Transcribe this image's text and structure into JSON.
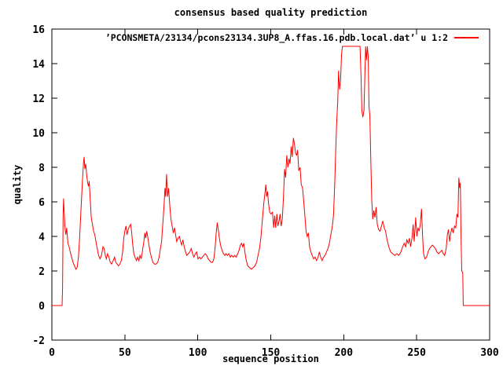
{
  "chart_data": {
    "type": "line",
    "title": "consensus based quality prediction",
    "xlabel": "sequence position",
    "ylabel": "quality",
    "legend": "’PCONSMETA/23134/pcons23134.3UP8_A.ffas.16.pdb.local.dat’ u 1:2",
    "line_color": "#ff0000",
    "border_color": "#000000",
    "background_color": "#ffffff",
    "grid": false,
    "legend_position": "top-right-inside",
    "xlim": [
      0,
      300
    ],
    "ylim": [
      -2,
      16
    ],
    "xticks": [
      0,
      50,
      100,
      150,
      200,
      250,
      300
    ],
    "yticks": [
      -2,
      0,
      2,
      4,
      6,
      8,
      10,
      12,
      14,
      16
    ],
    "points": [
      [
        0,
        0
      ],
      [
        7,
        0
      ],
      [
        7.3,
        1
      ],
      [
        7.7,
        5.2
      ],
      [
        8,
        6.2
      ],
      [
        8.4,
        5.5
      ],
      [
        9,
        4.5
      ],
      [
        9.6,
        4.1
      ],
      [
        10.2,
        4.5
      ],
      [
        11,
        3.6
      ],
      [
        11.8,
        3.4
      ],
      [
        12.6,
        3.1
      ],
      [
        13.5,
        2.8
      ],
      [
        14.5,
        2.5
      ],
      [
        15.5,
        2.3
      ],
      [
        16.5,
        2.1
      ],
      [
        17.3,
        2.2
      ],
      [
        18.2,
        2.8
      ],
      [
        19,
        3.9
      ],
      [
        20,
        5.6
      ],
      [
        21,
        7.3
      ],
      [
        21.7,
        8.3
      ],
      [
        22.1,
        8.6
      ],
      [
        22.6,
        7.9
      ],
      [
        23.2,
        8.2
      ],
      [
        23.8,
        7.6
      ],
      [
        24.5,
        7.1
      ],
      [
        25.1,
        6.9
      ],
      [
        25.6,
        7.2
      ],
      [
        26.2,
        6.3
      ],
      [
        27,
        5.1
      ],
      [
        27.8,
        4.7
      ],
      [
        28.6,
        4.3
      ],
      [
        29.4,
        4.1
      ],
      [
        30.2,
        3.7
      ],
      [
        31.1,
        3.3
      ],
      [
        32,
        2.9
      ],
      [
        33,
        2.7
      ],
      [
        34,
        2.9
      ],
      [
        35,
        3.4
      ],
      [
        35.8,
        3.3
      ],
      [
        36.6,
        2.9
      ],
      [
        37.4,
        2.7
      ],
      [
        38.2,
        3
      ],
      [
        39.1,
        2.8
      ],
      [
        40,
        2.5
      ],
      [
        41,
        2.4
      ],
      [
        42,
        2.6
      ],
      [
        43,
        2.8
      ],
      [
        43.8,
        2.5
      ],
      [
        44.7,
        2.4
      ],
      [
        45.6,
        2.3
      ],
      [
        46.6,
        2.4
      ],
      [
        47.6,
        2.6
      ],
      [
        48.5,
        3.1
      ],
      [
        49.3,
        3.9
      ],
      [
        50.2,
        4.4
      ],
      [
        50.8,
        4.6
      ],
      [
        51.5,
        4.1
      ],
      [
        52.3,
        4.4
      ],
      [
        53.2,
        4.6
      ],
      [
        54,
        4.7
      ],
      [
        54.7,
        4.2
      ],
      [
        55.4,
        3.5
      ],
      [
        56.2,
        3
      ],
      [
        57,
        2.8
      ],
      [
        58,
        2.6
      ],
      [
        58.8,
        2.8
      ],
      [
        59.6,
        2.6
      ],
      [
        60.4,
        2.9
      ],
      [
        61.2,
        2.7
      ],
      [
        62,
        3.1
      ],
      [
        63,
        3.7
      ],
      [
        63.7,
        4.2
      ],
      [
        64.3,
        3.9
      ],
      [
        65,
        4.3
      ],
      [
        65.8,
        3.9
      ],
      [
        66.5,
        3.5
      ],
      [
        67.3,
        3.1
      ],
      [
        68.2,
        2.8
      ],
      [
        69.2,
        2.5
      ],
      [
        70.3,
        2.4
      ],
      [
        71.4,
        2.4
      ],
      [
        72.5,
        2.5
      ],
      [
        73.5,
        2.8
      ],
      [
        74.4,
        3.3
      ],
      [
        75.2,
        3.7
      ],
      [
        76,
        4.7
      ],
      [
        76.8,
        5.7
      ],
      [
        77.5,
        6.8
      ],
      [
        78,
        6.3
      ],
      [
        78.6,
        7.6
      ],
      [
        79.3,
        6.3
      ],
      [
        80,
        6.8
      ],
      [
        80.8,
        5.8
      ],
      [
        81.6,
        5
      ],
      [
        82.4,
        4.6
      ],
      [
        83.2,
        4.2
      ],
      [
        84,
        4.5
      ],
      [
        84.8,
        4.1
      ],
      [
        85.6,
        3.7
      ],
      [
        86.5,
        3.9
      ],
      [
        87.4,
        4
      ],
      [
        88.2,
        3.7
      ],
      [
        89,
        3.5
      ],
      [
        89.8,
        3.8
      ],
      [
        90.7,
        3.4
      ],
      [
        91.6,
        3.1
      ],
      [
        92.5,
        2.9
      ],
      [
        93.5,
        3
      ],
      [
        94.5,
        3.1
      ],
      [
        95.5,
        3.3
      ],
      [
        96.4,
        3
      ],
      [
        97.3,
        2.8
      ],
      [
        98.3,
        3
      ],
      [
        99.2,
        3.1
      ],
      [
        100.1,
        2.7
      ],
      [
        101.1,
        2.8
      ],
      [
        102.1,
        2.7
      ],
      [
        103.1,
        2.8
      ],
      [
        104.1,
        2.9
      ],
      [
        105.1,
        3
      ],
      [
        106.1,
        2.9
      ],
      [
        107.1,
        2.7
      ],
      [
        108.1,
        2.6
      ],
      [
        109.1,
        2.5
      ],
      [
        110.1,
        2.5
      ],
      [
        111,
        2.7
      ],
      [
        111.8,
        3.3
      ],
      [
        112.6,
        4.2
      ],
      [
        113.3,
        4.8
      ],
      [
        114,
        4.4
      ],
      [
        114.8,
        3.9
      ],
      [
        115.6,
        3.5
      ],
      [
        116.6,
        3.2
      ],
      [
        117.6,
        3
      ],
      [
        118.5,
        2.9
      ],
      [
        119.4,
        3
      ],
      [
        120.3,
        2.9
      ],
      [
        121.3,
        3
      ],
      [
        122.3,
        2.8
      ],
      [
        123.3,
        2.9
      ],
      [
        124.3,
        2.8
      ],
      [
        125.3,
        2.9
      ],
      [
        126.3,
        2.8
      ],
      [
        127.3,
        3
      ],
      [
        128.3,
        3.2
      ],
      [
        129.2,
        3.5
      ],
      [
        130,
        3.6
      ],
      [
        130.7,
        3.4
      ],
      [
        131.5,
        3.6
      ],
      [
        132.3,
        3.1
      ],
      [
        133.2,
        2.6
      ],
      [
        134.2,
        2.3
      ],
      [
        135.4,
        2.2
      ],
      [
        136.7,
        2.1
      ],
      [
        138,
        2.2
      ],
      [
        139.2,
        2.3
      ],
      [
        140.3,
        2.5
      ],
      [
        141.3,
        2.9
      ],
      [
        142.3,
        3.3
      ],
      [
        143.3,
        4
      ],
      [
        144.3,
        5
      ],
      [
        145.2,
        5.9
      ],
      [
        146,
        6.5
      ],
      [
        146.6,
        7
      ],
      [
        147.2,
        6.3
      ],
      [
        147.8,
        6.6
      ],
      [
        148.5,
        5.9
      ],
      [
        149.3,
        5.4
      ],
      [
        150.2,
        5.3
      ],
      [
        151.2,
        5.4
      ],
      [
        152,
        4.5
      ],
      [
        152.7,
        5.2
      ],
      [
        153.4,
        4.5
      ],
      [
        154.2,
        5.3
      ],
      [
        154.9,
        4.6
      ],
      [
        155.7,
        4.9
      ],
      [
        156.4,
        5.3
      ],
      [
        157.1,
        4.6
      ],
      [
        157.9,
        5
      ],
      [
        158.7,
        6.3
      ],
      [
        159.5,
        7.9
      ],
      [
        160.2,
        7.4
      ],
      [
        161,
        8.7
      ],
      [
        161.8,
        8
      ],
      [
        162.5,
        8.5
      ],
      [
        163.2,
        8.2
      ],
      [
        164,
        9.2
      ],
      [
        164.7,
        8.6
      ],
      [
        165.5,
        9.7
      ],
      [
        166.3,
        9.3
      ],
      [
        167,
        8.8
      ],
      [
        167.8,
        8.7
      ],
      [
        168.4,
        9
      ],
      [
        169.2,
        7.8
      ],
      [
        170.1,
        8
      ],
      [
        170.9,
        7
      ],
      [
        171.8,
        6.8
      ],
      [
        172.6,
        6
      ],
      [
        173.4,
        5.2
      ],
      [
        174.2,
        4.3
      ],
      [
        175,
        4
      ],
      [
        175.8,
        4.2
      ],
      [
        176.6,
        3.4
      ],
      [
        177.5,
        3.1
      ],
      [
        178.4,
        2.9
      ],
      [
        179.4,
        2.7
      ],
      [
        180.4,
        2.8
      ],
      [
        181.4,
        2.6
      ],
      [
        182.4,
        2.8
      ],
      [
        183.3,
        3.1
      ],
      [
        184.2,
        2.8
      ],
      [
        185.2,
        2.6
      ],
      [
        186.2,
        2.8
      ],
      [
        187.2,
        2.9
      ],
      [
        188.2,
        3.1
      ],
      [
        189.2,
        3.3
      ],
      [
        190.2,
        3.6
      ],
      [
        191.2,
        4.1
      ],
      [
        192.2,
        4.6
      ],
      [
        193,
        5.2
      ],
      [
        193.8,
        6.9
      ],
      [
        194.5,
        8.9
      ],
      [
        195.2,
        10.6
      ],
      [
        195.9,
        11.8
      ],
      [
        196.5,
        13.6
      ],
      [
        197.2,
        12.5
      ],
      [
        197.9,
        13.1
      ],
      [
        198.5,
        14.5
      ],
      [
        199.1,
        15
      ],
      [
        211.2,
        15
      ],
      [
        211.9,
        13.2
      ],
      [
        212.4,
        11.3
      ],
      [
        213.1,
        10.9
      ],
      [
        213.9,
        11.3
      ],
      [
        214.5,
        13.4
      ],
      [
        215,
        15
      ],
      [
        215.6,
        14.2
      ],
      [
        216.2,
        15
      ],
      [
        216.8,
        14.4
      ],
      [
        217.3,
        11.5
      ],
      [
        217.9,
        11
      ],
      [
        218.5,
        8.6
      ],
      [
        219.2,
        6.1
      ],
      [
        219.9,
        5
      ],
      [
        220.6,
        5.5
      ],
      [
        221.4,
        5.1
      ],
      [
        222.2,
        5.7
      ],
      [
        223,
        4.7
      ],
      [
        223.9,
        4.4
      ],
      [
        224.9,
        4.3
      ],
      [
        225.9,
        4.6
      ],
      [
        226.8,
        4.9
      ],
      [
        227.7,
        4.5
      ],
      [
        228.7,
        4.3
      ],
      [
        229.7,
        3.8
      ],
      [
        230.9,
        3.4
      ],
      [
        232.2,
        3.1
      ],
      [
        233.6,
        3
      ],
      [
        235,
        2.9
      ],
      [
        236.4,
        3
      ],
      [
        237.8,
        2.9
      ],
      [
        239.2,
        3.1
      ],
      [
        240.4,
        3.4
      ],
      [
        241.4,
        3.6
      ],
      [
        242.4,
        3.4
      ],
      [
        243.3,
        3.8
      ],
      [
        244.2,
        3.6
      ],
      [
        245,
        3.9
      ],
      [
        245.8,
        3.4
      ],
      [
        246.8,
        3.9
      ],
      [
        247.6,
        4.7
      ],
      [
        248.3,
        3.7
      ],
      [
        249.3,
        5.1
      ],
      [
        250.1,
        4
      ],
      [
        250.9,
        4.5
      ],
      [
        251.7,
        4.3
      ],
      [
        252.5,
        4.7
      ],
      [
        253.3,
        5.6
      ],
      [
        254,
        4.1
      ],
      [
        254.7,
        3
      ],
      [
        255.7,
        2.7
      ],
      [
        256.8,
        2.8
      ],
      [
        257.8,
        3.1
      ],
      [
        258.8,
        3.3
      ],
      [
        259.8,
        3.4
      ],
      [
        260.8,
        3.5
      ],
      [
        261.8,
        3.4
      ],
      [
        262.8,
        3.3
      ],
      [
        263.9,
        3.1
      ],
      [
        265,
        3
      ],
      [
        266.1,
        3.1
      ],
      [
        267.2,
        3.2
      ],
      [
        268.2,
        3
      ],
      [
        269.2,
        2.9
      ],
      [
        270.2,
        3.3
      ],
      [
        271,
        4.1
      ],
      [
        271.8,
        4.4
      ],
      [
        272.6,
        3.7
      ],
      [
        273.4,
        4.2
      ],
      [
        274.2,
        4.5
      ],
      [
        275,
        4.2
      ],
      [
        275.9,
        4.6
      ],
      [
        276.8,
        4.5
      ],
      [
        277.6,
        5.3
      ],
      [
        278.3,
        5.1
      ],
      [
        278.9,
        7.4
      ],
      [
        279.5,
        6.8
      ],
      [
        279.9,
        7.1
      ],
      [
        280.4,
        4
      ],
      [
        280.9,
        2
      ],
      [
        281.6,
        1.9
      ],
      [
        281.9,
        0
      ],
      [
        300,
        0
      ]
    ]
  }
}
